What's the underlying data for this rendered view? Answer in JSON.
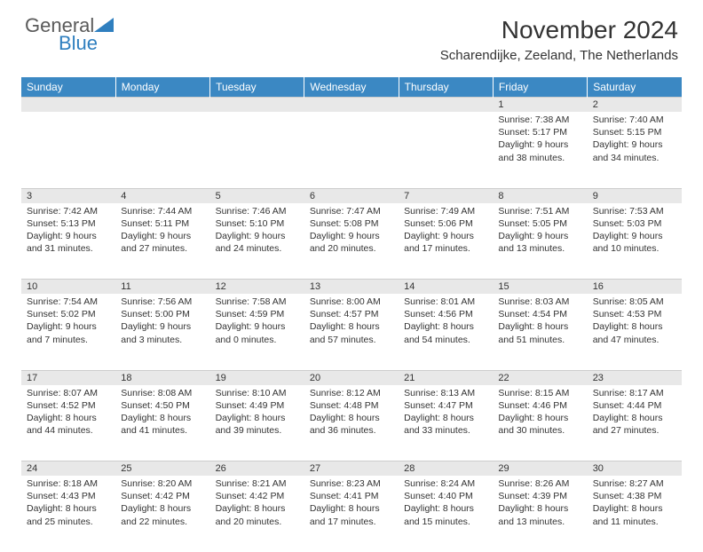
{
  "logo": {
    "word1": "General",
    "word2": "Blue"
  },
  "title": "November 2024",
  "location": "Scharendijke, Zeeland, The Netherlands",
  "colors": {
    "header_bg": "#3b88c3",
    "header_text": "#ffffff",
    "daynum_bg": "#e8e8e8",
    "text": "#333333",
    "logo_gray": "#5a5a5a",
    "logo_blue": "#2f7fbf"
  },
  "day_headers": [
    "Sunday",
    "Monday",
    "Tuesday",
    "Wednesday",
    "Thursday",
    "Friday",
    "Saturday"
  ],
  "weeks": [
    [
      null,
      null,
      null,
      null,
      null,
      {
        "n": "1",
        "sr": "Sunrise: 7:38 AM",
        "ss": "Sunset: 5:17 PM",
        "dl": "Daylight: 9 hours and 38 minutes."
      },
      {
        "n": "2",
        "sr": "Sunrise: 7:40 AM",
        "ss": "Sunset: 5:15 PM",
        "dl": "Daylight: 9 hours and 34 minutes."
      }
    ],
    [
      {
        "n": "3",
        "sr": "Sunrise: 7:42 AM",
        "ss": "Sunset: 5:13 PM",
        "dl": "Daylight: 9 hours and 31 minutes."
      },
      {
        "n": "4",
        "sr": "Sunrise: 7:44 AM",
        "ss": "Sunset: 5:11 PM",
        "dl": "Daylight: 9 hours and 27 minutes."
      },
      {
        "n": "5",
        "sr": "Sunrise: 7:46 AM",
        "ss": "Sunset: 5:10 PM",
        "dl": "Daylight: 9 hours and 24 minutes."
      },
      {
        "n": "6",
        "sr": "Sunrise: 7:47 AM",
        "ss": "Sunset: 5:08 PM",
        "dl": "Daylight: 9 hours and 20 minutes."
      },
      {
        "n": "7",
        "sr": "Sunrise: 7:49 AM",
        "ss": "Sunset: 5:06 PM",
        "dl": "Daylight: 9 hours and 17 minutes."
      },
      {
        "n": "8",
        "sr": "Sunrise: 7:51 AM",
        "ss": "Sunset: 5:05 PM",
        "dl": "Daylight: 9 hours and 13 minutes."
      },
      {
        "n": "9",
        "sr": "Sunrise: 7:53 AM",
        "ss": "Sunset: 5:03 PM",
        "dl": "Daylight: 9 hours and 10 minutes."
      }
    ],
    [
      {
        "n": "10",
        "sr": "Sunrise: 7:54 AM",
        "ss": "Sunset: 5:02 PM",
        "dl": "Daylight: 9 hours and 7 minutes."
      },
      {
        "n": "11",
        "sr": "Sunrise: 7:56 AM",
        "ss": "Sunset: 5:00 PM",
        "dl": "Daylight: 9 hours and 3 minutes."
      },
      {
        "n": "12",
        "sr": "Sunrise: 7:58 AM",
        "ss": "Sunset: 4:59 PM",
        "dl": "Daylight: 9 hours and 0 minutes."
      },
      {
        "n": "13",
        "sr": "Sunrise: 8:00 AM",
        "ss": "Sunset: 4:57 PM",
        "dl": "Daylight: 8 hours and 57 minutes."
      },
      {
        "n": "14",
        "sr": "Sunrise: 8:01 AM",
        "ss": "Sunset: 4:56 PM",
        "dl": "Daylight: 8 hours and 54 minutes."
      },
      {
        "n": "15",
        "sr": "Sunrise: 8:03 AM",
        "ss": "Sunset: 4:54 PM",
        "dl": "Daylight: 8 hours and 51 minutes."
      },
      {
        "n": "16",
        "sr": "Sunrise: 8:05 AM",
        "ss": "Sunset: 4:53 PM",
        "dl": "Daylight: 8 hours and 47 minutes."
      }
    ],
    [
      {
        "n": "17",
        "sr": "Sunrise: 8:07 AM",
        "ss": "Sunset: 4:52 PM",
        "dl": "Daylight: 8 hours and 44 minutes."
      },
      {
        "n": "18",
        "sr": "Sunrise: 8:08 AM",
        "ss": "Sunset: 4:50 PM",
        "dl": "Daylight: 8 hours and 41 minutes."
      },
      {
        "n": "19",
        "sr": "Sunrise: 8:10 AM",
        "ss": "Sunset: 4:49 PM",
        "dl": "Daylight: 8 hours and 39 minutes."
      },
      {
        "n": "20",
        "sr": "Sunrise: 8:12 AM",
        "ss": "Sunset: 4:48 PM",
        "dl": "Daylight: 8 hours and 36 minutes."
      },
      {
        "n": "21",
        "sr": "Sunrise: 8:13 AM",
        "ss": "Sunset: 4:47 PM",
        "dl": "Daylight: 8 hours and 33 minutes."
      },
      {
        "n": "22",
        "sr": "Sunrise: 8:15 AM",
        "ss": "Sunset: 4:46 PM",
        "dl": "Daylight: 8 hours and 30 minutes."
      },
      {
        "n": "23",
        "sr": "Sunrise: 8:17 AM",
        "ss": "Sunset: 4:44 PM",
        "dl": "Daylight: 8 hours and 27 minutes."
      }
    ],
    [
      {
        "n": "24",
        "sr": "Sunrise: 8:18 AM",
        "ss": "Sunset: 4:43 PM",
        "dl": "Daylight: 8 hours and 25 minutes."
      },
      {
        "n": "25",
        "sr": "Sunrise: 8:20 AM",
        "ss": "Sunset: 4:42 PM",
        "dl": "Daylight: 8 hours and 22 minutes."
      },
      {
        "n": "26",
        "sr": "Sunrise: 8:21 AM",
        "ss": "Sunset: 4:42 PM",
        "dl": "Daylight: 8 hours and 20 minutes."
      },
      {
        "n": "27",
        "sr": "Sunrise: 8:23 AM",
        "ss": "Sunset: 4:41 PM",
        "dl": "Daylight: 8 hours and 17 minutes."
      },
      {
        "n": "28",
        "sr": "Sunrise: 8:24 AM",
        "ss": "Sunset: 4:40 PM",
        "dl": "Daylight: 8 hours and 15 minutes."
      },
      {
        "n": "29",
        "sr": "Sunrise: 8:26 AM",
        "ss": "Sunset: 4:39 PM",
        "dl": "Daylight: 8 hours and 13 minutes."
      },
      {
        "n": "30",
        "sr": "Sunrise: 8:27 AM",
        "ss": "Sunset: 4:38 PM",
        "dl": "Daylight: 8 hours and 11 minutes."
      }
    ]
  ]
}
